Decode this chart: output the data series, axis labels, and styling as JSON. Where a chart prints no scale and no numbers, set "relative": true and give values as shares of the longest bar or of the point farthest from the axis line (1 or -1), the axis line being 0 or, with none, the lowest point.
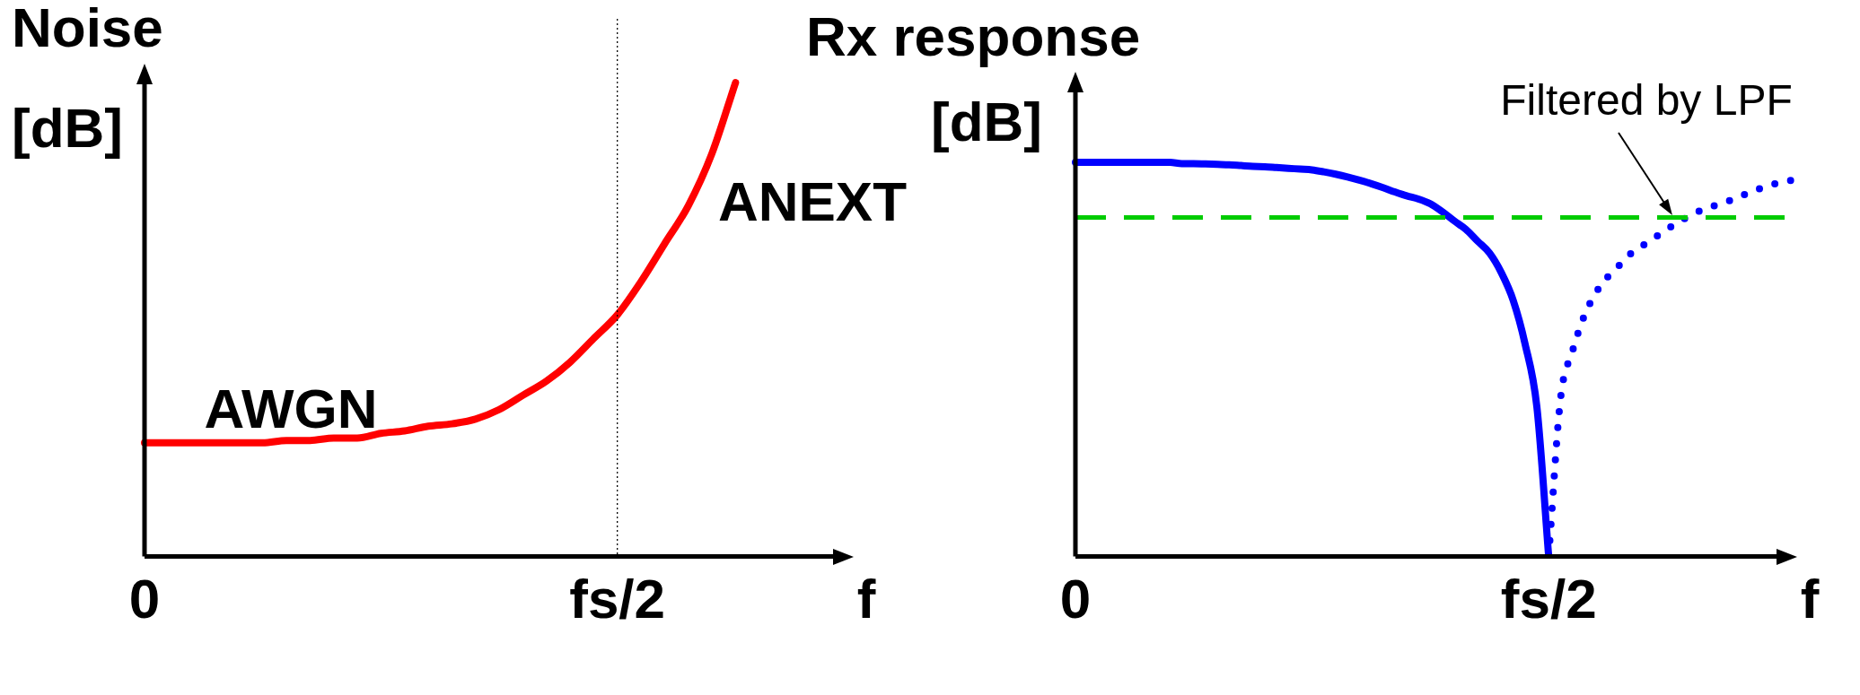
{
  "chart_data": [
    {
      "type": "line",
      "title": "Noise",
      "ylabel": "[dB]",
      "xlabel": "f",
      "relative": true,
      "grid": false,
      "legend": false,
      "marker": "none",
      "categories": [
        "0",
        null,
        null,
        null,
        null,
        null,
        null,
        null,
        null,
        null,
        null,
        null,
        null,
        null,
        null,
        null,
        null,
        null,
        null,
        null,
        "fs/2",
        null,
        null,
        null,
        null,
        null,
        null,
        null,
        null,
        null,
        null
      ],
      "series": [
        {
          "color": "#ff0000",
          "values": [
            0.24,
            0.24,
            0.24,
            0.24,
            0.24,
            0.24,
            0.245,
            0.245,
            0.25,
            0.25,
            0.26,
            0.265,
            0.275,
            0.28,
            0.29,
            0.31,
            0.34,
            0.37,
            0.41,
            0.46,
            0.51,
            0.58,
            0.66,
            0.74,
            0.85,
            1.0,
            null,
            null,
            null,
            null,
            null
          ]
        }
      ],
      "ref_lines": [
        {
          "axis": "x",
          "value": "fs/2",
          "color": "#000000",
          "line_style": "dotted"
        }
      ],
      "annotations": [
        "AWGN",
        "ANEXT"
      ]
    },
    {
      "type": "line",
      "title": "Rx response",
      "ylabel": "[dB]",
      "xlabel": "f",
      "relative": true,
      "grid": false,
      "legend": false,
      "marker": "none",
      "categories": [
        "0",
        null,
        null,
        null,
        null,
        null,
        null,
        null,
        null,
        null,
        null,
        null,
        null,
        null,
        null,
        null,
        null,
        null,
        null,
        null,
        null,
        null,
        null,
        null,
        null,
        null,
        null,
        null,
        null,
        null,
        null,
        null,
        null,
        null,
        null,
        null,
        null,
        null,
        null,
        null,
        "fs/2",
        null,
        null,
        null,
        null,
        null,
        null,
        null,
        null,
        null,
        null,
        null,
        null,
        null,
        null,
        null,
        null,
        null,
        null,
        null,
        null,
        null
      ],
      "series": [
        {
          "color": "#0000ff",
          "line_style": "solid",
          "values": [
            1,
            1,
            1,
            1,
            1,
            1,
            1,
            1,
            1,
            0.997,
            0.997,
            0.996,
            0.995,
            0.994,
            0.992,
            0.99,
            0.989,
            0.987,
            0.985,
            0.983,
            0.981,
            0.976,
            0.97,
            0.963,
            0.955,
            0.946,
            0.936,
            0.925,
            0.915,
            0.907,
            0.895,
            0.875,
            0.852,
            0.83,
            0.8,
            0.77,
            0.72,
            0.65,
            0.54,
            0.38,
            0,
            null,
            null,
            null,
            null,
            null,
            null,
            null,
            null,
            null,
            null,
            null,
            null,
            null,
            null,
            null,
            null,
            null,
            null,
            null,
            null,
            null
          ]
        },
        {
          "color": "#0000ff",
          "line_style": "dotted",
          "values": [
            null,
            null,
            null,
            null,
            null,
            null,
            null,
            null,
            null,
            null,
            null,
            null,
            null,
            null,
            null,
            null,
            null,
            null,
            null,
            null,
            null,
            null,
            null,
            null,
            null,
            null,
            null,
            null,
            null,
            null,
            null,
            null,
            null,
            null,
            null,
            null,
            null,
            null,
            null,
            null,
            0,
            0.4,
            0.52,
            0.61,
            0.67,
            0.71,
            0.74,
            0.77,
            0.79,
            0.81,
            0.83,
            0.85,
            0.865,
            0.88,
            0.89,
            0.9,
            0.91,
            0.925,
            0.935,
            0.945,
            0.95,
            0.96
          ]
        }
      ],
      "ref_lines": [
        {
          "axis": "y",
          "value": 0.86,
          "color": "#00cc00",
          "line_style": "dashed"
        }
      ],
      "annotations": [
        "Filtered by LPF"
      ]
    }
  ]
}
